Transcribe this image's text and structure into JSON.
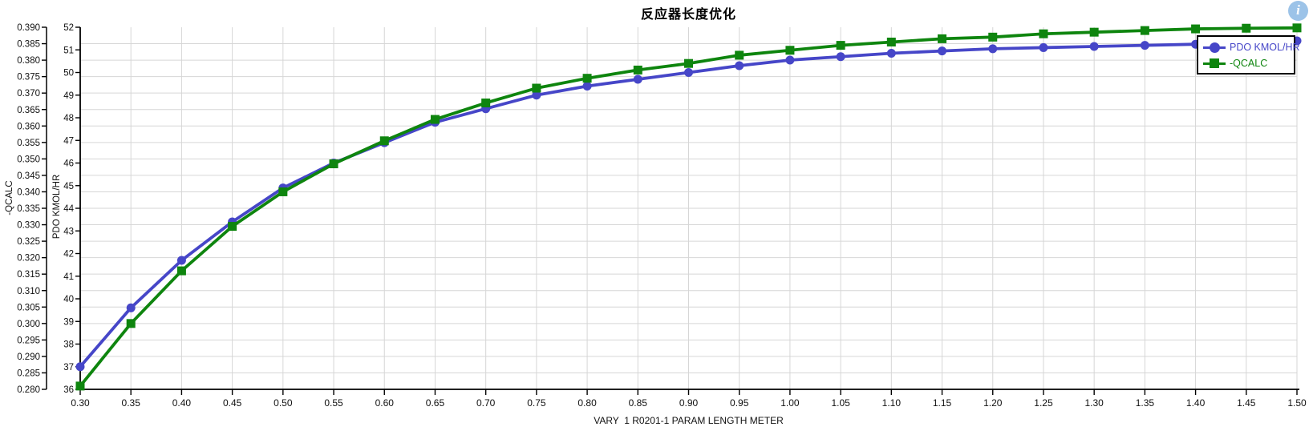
{
  "title": "反应器长度优化",
  "info_icon_glyph": "i",
  "colors": {
    "series_pdo": "#4646c8",
    "series_qcalc": "#0e850e",
    "grid": "#d6d6d6",
    "axis": "#000000",
    "info_icon_bg": "#9cc3e8",
    "info_icon_glyph": "#ffffff",
    "background": "#ffffff"
  },
  "chart_data": {
    "type": "line",
    "title": "反应器长度优化",
    "grid": true,
    "legend": {
      "position": "top-right",
      "entries": [
        "PDO KMOL/HR",
        "-QCALC"
      ]
    },
    "x_axis": {
      "label": "VARY  1 R0201-1 PARAM LENGTH METER",
      "min": 0.3,
      "max": 1.5,
      "tick_step": 0.05,
      "ticks": [
        "0.30",
        "0.35",
        "0.40",
        "0.45",
        "0.50",
        "0.55",
        "0.60",
        "0.65",
        "0.70",
        "0.75",
        "0.80",
        "0.85",
        "0.90",
        "0.95",
        "1.00",
        "1.05",
        "1.10",
        "1.15",
        "1.20",
        "1.25",
        "1.30",
        "1.35",
        "1.40",
        "1.45",
        "1.50"
      ]
    },
    "y_axis_outer": {
      "label": "-QCALC",
      "min": 0.28,
      "max": 0.39,
      "tick_step": 0.005,
      "ticks": [
        "0.390",
        "0.385",
        "0.380",
        "0.375",
        "0.370",
        "0.365",
        "0.360",
        "0.355",
        "0.350",
        "0.345",
        "0.340",
        "0.335",
        "0.330",
        "0.325",
        "0.320",
        "0.315",
        "0.310",
        "0.305",
        "0.300",
        "0.295",
        "0.290",
        "0.285",
        "0.280"
      ]
    },
    "y_axis_inner": {
      "label": "PDO KMOL/HR",
      "min": 36,
      "max": 52,
      "tick_step": 1,
      "ticks": [
        "52",
        "51",
        "50",
        "49",
        "48",
        "47",
        "46",
        "45",
        "44",
        "43",
        "42",
        "41",
        "40",
        "39",
        "38",
        "37",
        "36"
      ]
    },
    "x": [
      0.3,
      0.35,
      0.4,
      0.45,
      0.5,
      0.55,
      0.6,
      0.65,
      0.7,
      0.75,
      0.8,
      0.85,
      0.9,
      0.95,
      1.0,
      1.05,
      1.1,
      1.15,
      1.2,
      1.25,
      1.3,
      1.35,
      1.4,
      1.45,
      1.5
    ],
    "series": [
      {
        "name": "PDO KMOL/HR",
        "y_axis": "inner",
        "color": "#4646c8",
        "marker": "circle",
        "values": [
          37.0,
          39.6,
          41.7,
          43.4,
          44.9,
          46.0,
          46.9,
          47.8,
          48.4,
          49.0,
          49.4,
          49.7,
          50.0,
          50.3,
          50.55,
          50.7,
          50.85,
          50.95,
          51.05,
          51.1,
          51.15,
          51.2,
          51.25,
          51.3,
          51.4
        ]
      },
      {
        "name": "-QCALC",
        "y_axis": "outer",
        "color": "#0e850e",
        "marker": "square",
        "values": [
          0.281,
          0.3,
          0.316,
          0.3295,
          0.34,
          0.3485,
          0.3555,
          0.362,
          0.367,
          0.3715,
          0.3745,
          0.377,
          0.379,
          0.3815,
          0.383,
          0.3845,
          0.3855,
          0.3865,
          0.387,
          0.388,
          0.3885,
          0.389,
          0.3895,
          0.3897,
          0.3898
        ]
      }
    ]
  }
}
